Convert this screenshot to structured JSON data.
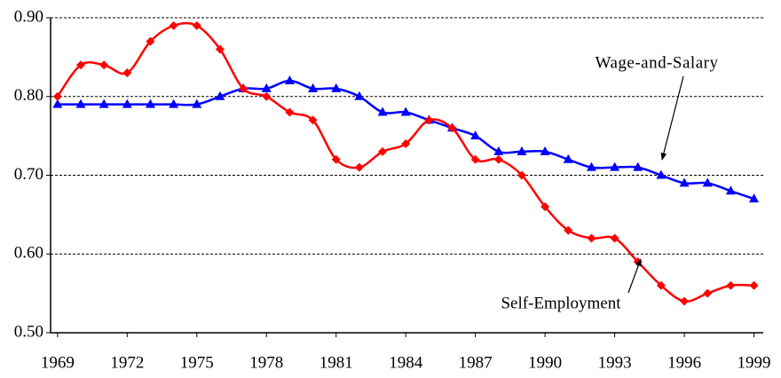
{
  "chart_data": {
    "type": "line",
    "x": [
      1969,
      1970,
      1971,
      1972,
      1973,
      1974,
      1975,
      1976,
      1977,
      1978,
      1979,
      1980,
      1981,
      1982,
      1983,
      1984,
      1985,
      1986,
      1987,
      1988,
      1989,
      1990,
      1991,
      1992,
      1993,
      1994,
      1995,
      1996,
      1997,
      1998,
      1999
    ],
    "series": [
      {
        "name": "Self-Employment",
        "color": "#ff0000",
        "marker": "diamond",
        "values": [
          0.8,
          0.84,
          0.84,
          0.83,
          0.87,
          0.89,
          0.89,
          0.86,
          0.81,
          0.8,
          0.78,
          0.77,
          0.72,
          0.71,
          0.73,
          0.74,
          0.77,
          0.76,
          0.72,
          0.72,
          0.7,
          0.66,
          0.63,
          0.62,
          0.62,
          0.59,
          0.56,
          0.54,
          0.55,
          0.56,
          0.56
        ]
      },
      {
        "name": "Wage-and-Salary",
        "color": "#0000ff",
        "marker": "triangle",
        "values": [
          0.79,
          0.79,
          0.79,
          0.79,
          0.79,
          0.79,
          0.79,
          0.8,
          0.81,
          0.81,
          0.82,
          0.81,
          0.81,
          0.8,
          0.78,
          0.78,
          0.77,
          0.76,
          0.75,
          0.73,
          0.73,
          0.73,
          0.72,
          0.71,
          0.71,
          0.71,
          0.7,
          0.69,
          0.69,
          0.68,
          0.67
        ]
      }
    ],
    "xlim": [
      1968.7,
      1999.4
    ],
    "xticks": [
      1969,
      1972,
      1975,
      1978,
      1981,
      1984,
      1987,
      1990,
      1993,
      1996,
      1999
    ],
    "ylim": [
      0.5,
      0.9
    ],
    "yticks": [
      {
        "value": 0.5,
        "label": "0.50"
      },
      {
        "value": 0.6,
        "label": "0.60"
      },
      {
        "value": 0.7,
        "label": "0.70"
      },
      {
        "value": 0.8,
        "label": "0.80"
      },
      {
        "value": 0.9,
        "label": "0.90"
      }
    ],
    "grid": true,
    "annotations": [
      {
        "text": "Wage-and-Salary"
      },
      {
        "text": "Self-Employment"
      }
    ]
  }
}
